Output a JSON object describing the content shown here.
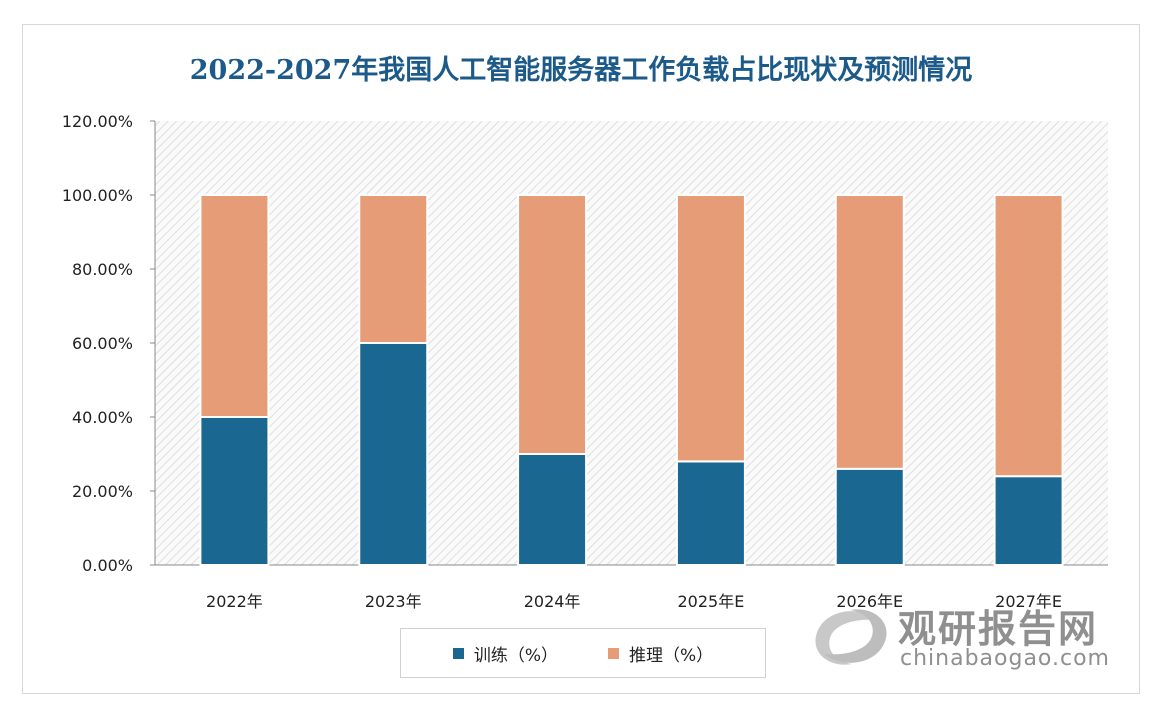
{
  "chart_data": {
    "type": "bar",
    "stacked": true,
    "title": "2022-2027年我国人工智能服务器工作负载占比现状及预测情况",
    "categories": [
      "2022年",
      "2023年",
      "2024年",
      "2025年E",
      "2026年E",
      "2027年E"
    ],
    "series": [
      {
        "name": "训练（%）",
        "color": "#1a6891",
        "values": [
          40,
          60,
          30,
          28,
          26,
          24
        ]
      },
      {
        "name": "推理（%）",
        "color": "#e69c76",
        "values": [
          60,
          40,
          70,
          72,
          74,
          76
        ]
      }
    ],
    "ylim": [
      0,
      120
    ],
    "yticks": [
      "0.00%",
      "20.00%",
      "40.00%",
      "60.00%",
      "80.00%",
      "100.00%",
      "120.00%"
    ],
    "legend_position": "bottom",
    "xlabel": "",
    "ylabel": ""
  },
  "watermark": {
    "cn": "观研报告网",
    "en": "chinabaogao.com"
  }
}
